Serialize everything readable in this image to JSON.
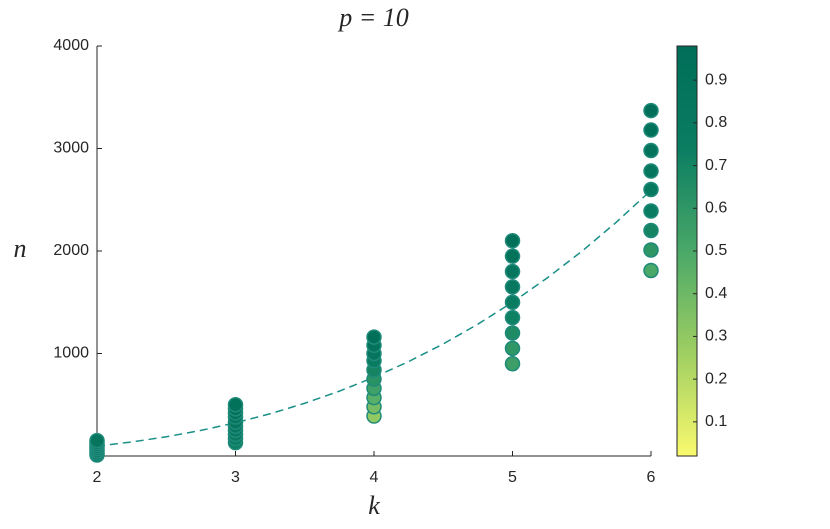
{
  "chart_data": {
    "type": "scatter",
    "title": "p = 10",
    "x_label": "k",
    "y_label": "n",
    "x": [
      2,
      2,
      2,
      2,
      2,
      2,
      2,
      2,
      3,
      3,
      3,
      3,
      3,
      3,
      3,
      3,
      3,
      3,
      4,
      4,
      4,
      4,
      4,
      4,
      4,
      4,
      4,
      4,
      5,
      5,
      5,
      5,
      5,
      5,
      5,
      5,
      5,
      6,
      6,
      6,
      6,
      6,
      6,
      6,
      6,
      6
    ],
    "y": [
      10,
      30,
      50,
      70,
      90,
      110,
      130,
      150,
      130,
      170,
      210,
      250,
      290,
      330,
      380,
      420,
      460,
      500,
      390,
      480,
      570,
      660,
      750,
      840,
      930,
      1000,
      1080,
      1160,
      900,
      1050,
      1200,
      1350,
      1500,
      1650,
      1800,
      1950,
      2100,
      1810,
      2010,
      2200,
      2390,
      2600,
      2780,
      2980,
      3180,
      3370
    ],
    "c": [
      0.85,
      0.85,
      0.85,
      0.85,
      0.86,
      0.86,
      0.87,
      0.87,
      0.72,
      0.76,
      0.79,
      0.82,
      0.84,
      0.86,
      0.88,
      0.9,
      0.91,
      0.92,
      0.3,
      0.38,
      0.46,
      0.54,
      0.62,
      0.7,
      0.78,
      0.85,
      0.9,
      0.95,
      0.55,
      0.6,
      0.66,
      0.72,
      0.77,
      0.82,
      0.87,
      0.91,
      0.95,
      0.5,
      0.6,
      0.7,
      0.76,
      0.81,
      0.86,
      0.9,
      0.93,
      0.96
    ],
    "curve": {
      "x": [
        2,
        2.25,
        2.5,
        2.75,
        3,
        3.25,
        3.5,
        3.75,
        4,
        4.25,
        4.5,
        4.75,
        5,
        5.25,
        5.5,
        5.75,
        6
      ],
      "values": [
        96,
        136.7,
        187.5,
        249.6,
        324,
        411.9,
        514.5,
        632.8,
        768,
        921.2,
        1093.5,
        1286.1,
        1500,
        1736.4,
        1996.5,
        2281.3,
        2592
      ],
      "color": "#1a8f88"
    },
    "xlim": [
      2,
      6
    ],
    "xticks": [
      2,
      3,
      4,
      5,
      6
    ],
    "ylim": [
      0,
      4000
    ],
    "yticks": [
      1000,
      2000,
      3000,
      4000
    ],
    "clim": [
      0.02,
      0.98
    ],
    "cticks": [
      0.1,
      0.2,
      0.3,
      0.4,
      0.5,
      0.6,
      0.7,
      0.8,
      0.9
    ],
    "colormap": [
      "#fafa6e",
      "#9fcf62",
      "#4aa868",
      "#0a7d62",
      "#006e58"
    ],
    "marker_edge_color": "#1f8a7a"
  }
}
